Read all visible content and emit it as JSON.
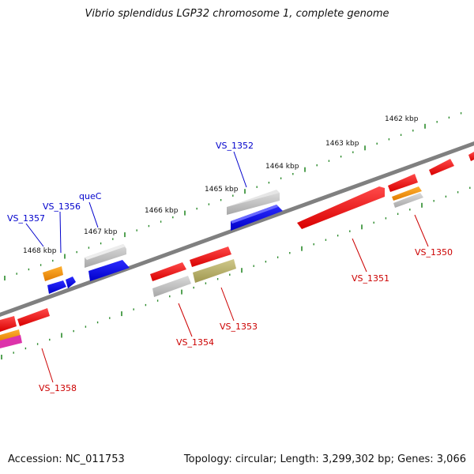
{
  "title": "Vibrio splendidus LGP32 chromosome 1, complete genome",
  "footer": {
    "accession": "Accession: NC_011753",
    "summary": "Topology: circular; Length: 3,299,302 bp; Genes: 3,066"
  },
  "kbp_labels": [
    "1462 kbp",
    "1463 kbp",
    "1464 kbp",
    "1465 kbp",
    "1466 kbp",
    "1467 kbp",
    "1468 kbp"
  ],
  "gene_labels_top": [
    "VS_1352",
    "queC",
    "VS_1356",
    "VS_1357"
  ],
  "gene_labels_bottom": [
    "VS_1350",
    "VS_1351",
    "VS_1353",
    "VS_1354",
    "VS_1358"
  ],
  "colors": {
    "forward": "#0000ee",
    "reverse": "#ff0000",
    "backbone": "#777777",
    "ticks": "#2a8a2a",
    "gray": "#b8b8b8",
    "orange": "#ff9900",
    "olive": "#b5ad6a",
    "magenta": "#dd33aa"
  }
}
